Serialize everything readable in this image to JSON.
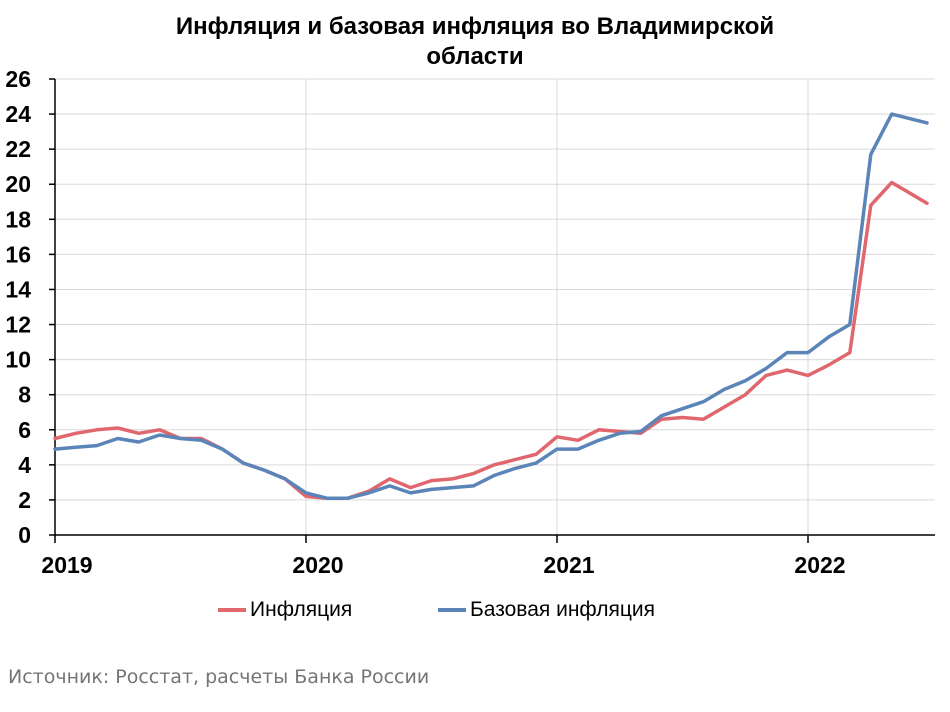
{
  "title_line1": "Инфляция и базовая инфляция во Владимирской",
  "title_line2": "области",
  "source": "Источник: Росстат, расчеты Банка России",
  "colors": {
    "inflation": "#e0676d",
    "core": "#5b84b8",
    "grid": "#d9d9d9",
    "axis": "#000000"
  },
  "chart_data": {
    "type": "line",
    "ylim": [
      0,
      26
    ],
    "yticks": [
      0,
      2,
      4,
      6,
      8,
      10,
      12,
      14,
      16,
      18,
      20,
      22,
      24,
      26
    ],
    "xlim": [
      "2019-01",
      "2022-06"
    ],
    "year_ticks": [
      "2019",
      "2020",
      "2021",
      "2022"
    ],
    "x": [
      "2019-01",
      "2019-02",
      "2019-03",
      "2019-04",
      "2019-05",
      "2019-06",
      "2019-07",
      "2019-08",
      "2019-09",
      "2019-10",
      "2019-11",
      "2019-12",
      "2020-01",
      "2020-02",
      "2020-03",
      "2020-04",
      "2020-05",
      "2020-06",
      "2020-07",
      "2020-08",
      "2020-09",
      "2020-10",
      "2020-11",
      "2020-12",
      "2021-01",
      "2021-02",
      "2021-03",
      "2021-04",
      "2021-05",
      "2021-06",
      "2021-07",
      "2021-08",
      "2021-09",
      "2021-10",
      "2021-11",
      "2021-12",
      "2022-01",
      "2022-02",
      "2022-03",
      "2022-04",
      "2022-05",
      "2022-06"
    ],
    "series": [
      {
        "name": "Инфляция",
        "values": [
          5.5,
          5.8,
          6.0,
          6.1,
          5.8,
          6.0,
          5.5,
          5.5,
          4.9,
          4.1,
          3.7,
          3.2,
          2.2,
          2.1,
          2.1,
          2.5,
          3.2,
          2.7,
          3.1,
          3.2,
          3.5,
          4.0,
          4.3,
          4.6,
          5.6,
          5.4,
          6.0,
          5.9,
          5.8,
          6.6,
          6.7,
          6.6,
          7.3,
          8.0,
          9.1,
          9.4,
          9.1,
          9.7,
          10.4,
          18.8,
          20.1,
          19.4
        ]
      },
      {
        "name": "Базовая инфляция",
        "values": [
          4.9,
          5.0,
          5.1,
          5.5,
          5.3,
          5.7,
          5.5,
          5.4,
          4.9,
          4.1,
          3.7,
          3.2,
          2.4,
          2.1,
          2.1,
          2.4,
          2.8,
          2.4,
          2.6,
          2.7,
          2.8,
          3.4,
          3.8,
          4.1,
          4.9,
          4.9,
          5.4,
          5.8,
          5.9,
          6.8,
          7.2,
          7.6,
          8.3,
          8.8,
          9.5,
          10.4,
          10.4,
          11.3,
          12.0,
          21.7,
          24.0,
          23.7
        ]
      }
    ],
    "legend_position": "bottom",
    "grid": true
  }
}
